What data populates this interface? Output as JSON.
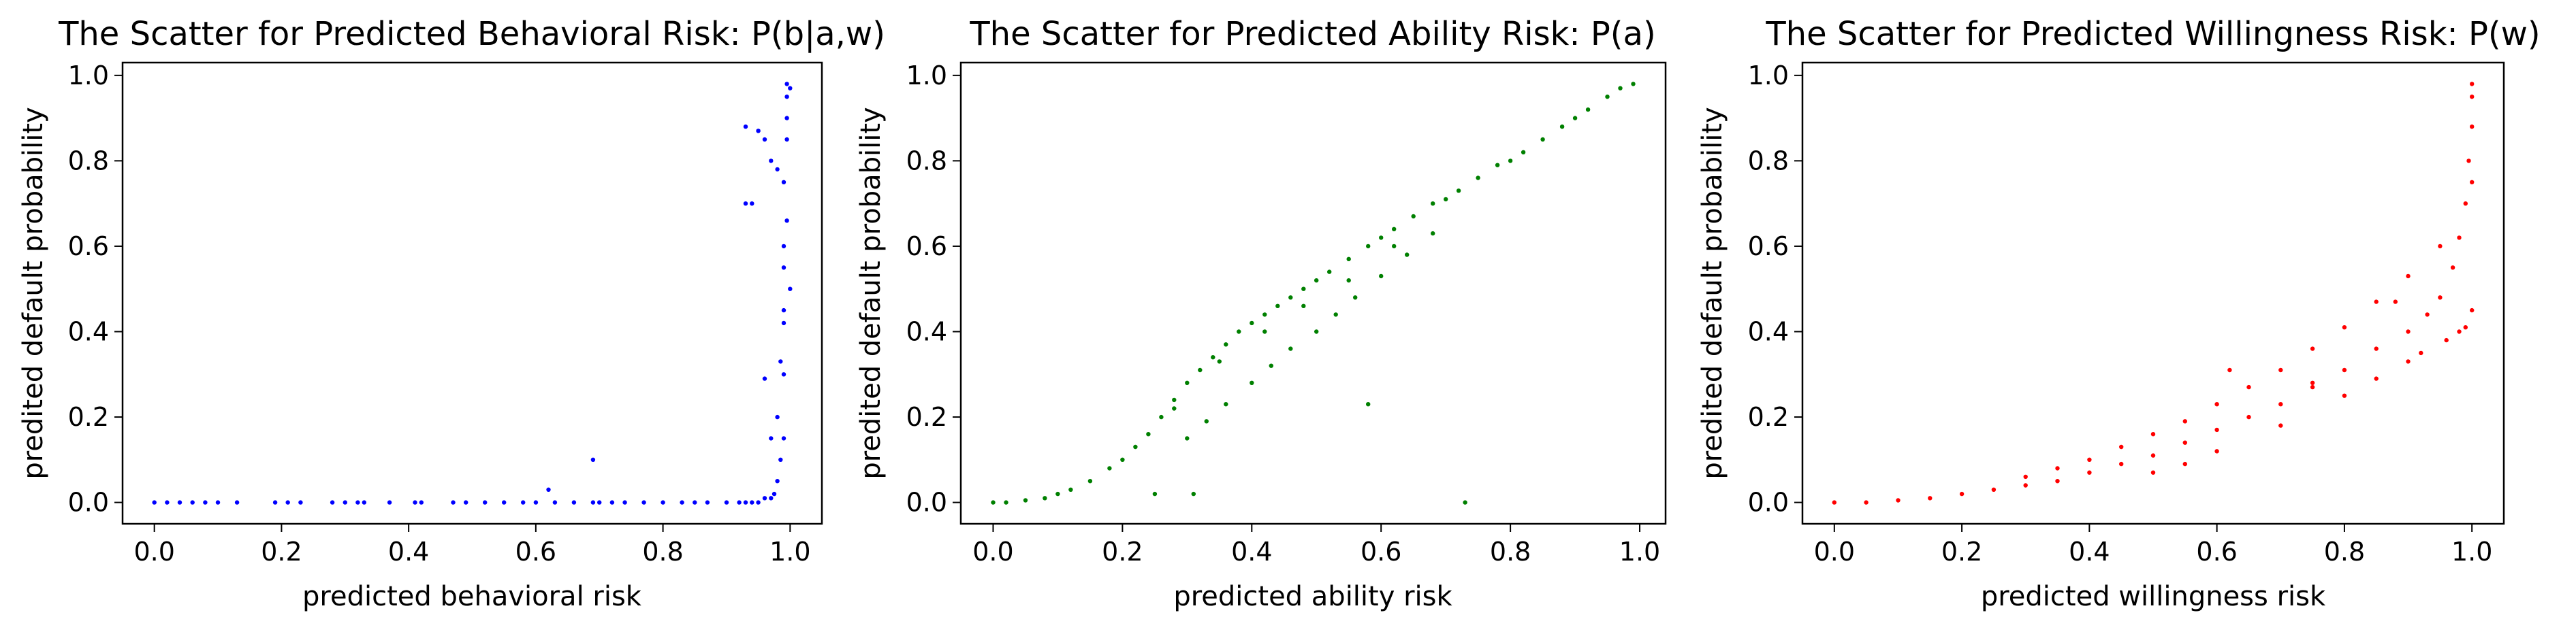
{
  "chart_data": [
    {
      "type": "scatter",
      "title": "The Scatter for Predicted Behavioral Risk: P(b|a,w)",
      "xlabel": "predicted behavioral risk",
      "ylabel": "predited default probability",
      "xlim": [
        -0.05,
        1.05
      ],
      "ylim": [
        -0.05,
        1.03
      ],
      "xticks": [
        0.0,
        0.2,
        0.4,
        0.6,
        0.8,
        1.0
      ],
      "xtick_labels": [
        "0.0",
        "0.2",
        "0.4",
        "0.6",
        "0.8",
        "1.0"
      ],
      "yticks": [
        0.0,
        0.2,
        0.4,
        0.6,
        0.8,
        1.0
      ],
      "ytick_labels": [
        "0.0",
        "0.2",
        "0.4",
        "0.6",
        "0.8",
        "1.0"
      ],
      "color": "#0000ff",
      "grid": false,
      "series": [
        {
          "x": [
            0.0,
            0.02,
            0.04,
            0.06,
            0.08,
            0.1,
            0.13,
            0.19,
            0.21,
            0.23,
            0.28,
            0.3,
            0.32,
            0.33,
            0.37,
            0.41,
            0.42,
            0.47,
            0.49,
            0.52,
            0.55,
            0.58,
            0.6,
            0.63,
            0.66,
            0.69,
            0.7,
            0.72,
            0.74,
            0.77,
            0.8,
            0.83,
            0.85,
            0.87,
            0.9,
            0.92,
            0.93,
            0.94,
            0.95,
            0.96,
            0.97,
            0.975,
            0.98,
            0.985,
            0.99,
            0.99,
            0.99,
            0.99,
            0.99,
            0.995,
            0.995,
            0.995,
            0.995,
            1.0,
            1.0,
            0.93,
            0.94,
            0.95,
            0.96,
            0.97,
            0.98,
            0.985,
            0.99,
            0.99,
            0.995,
            0.98,
            0.97,
            0.96,
            0.62,
            0.69,
            0.93,
            0.95
          ],
          "y": [
            0.0,
            0.0,
            0.0,
            0.0,
            0.0,
            0.0,
            0.0,
            0.0,
            0.0,
            0.0,
            0.0,
            0.0,
            0.0,
            0.0,
            0.0,
            0.0,
            0.0,
            0.0,
            0.0,
            0.0,
            0.0,
            0.0,
            0.0,
            0.0,
            0.0,
            0.0,
            0.0,
            0.0,
            0.0,
            0.0,
            0.0,
            0.0,
            0.0,
            0.0,
            0.0,
            0.0,
            0.0,
            0.0,
            0.0,
            0.01,
            0.01,
            0.02,
            0.05,
            0.1,
            0.15,
            0.3,
            0.45,
            0.6,
            0.75,
            0.85,
            0.9,
            0.95,
            0.98,
            0.5,
            0.97,
            0.88,
            0.7,
            0.87,
            0.29,
            0.15,
            0.2,
            0.33,
            0.42,
            0.55,
            0.66,
            0.78,
            0.8,
            0.85,
            0.03,
            0.1,
            0.7,
            0.87
          ]
        }
      ]
    },
    {
      "type": "scatter",
      "title": "The Scatter for Predicted Ability Risk: P(a)",
      "xlabel": "predicted ability risk",
      "ylabel": "predited default probability",
      "xlim": [
        -0.05,
        1.04
      ],
      "ylim": [
        -0.05,
        1.03
      ],
      "xticks": [
        0.0,
        0.2,
        0.4,
        0.6,
        0.8,
        1.0
      ],
      "xtick_labels": [
        "0.0",
        "0.2",
        "0.4",
        "0.6",
        "0.8",
        "1.0"
      ],
      "yticks": [
        0.0,
        0.2,
        0.4,
        0.6,
        0.8,
        1.0
      ],
      "ytick_labels": [
        "0.0",
        "0.2",
        "0.4",
        "0.6",
        "0.8",
        "1.0"
      ],
      "color": "#008000",
      "grid": false,
      "series": [
        {
          "x": [
            0.0,
            0.02,
            0.05,
            0.08,
            0.1,
            0.12,
            0.15,
            0.18,
            0.2,
            0.22,
            0.24,
            0.26,
            0.28,
            0.3,
            0.32,
            0.34,
            0.36,
            0.38,
            0.4,
            0.42,
            0.44,
            0.46,
            0.48,
            0.5,
            0.52,
            0.55,
            0.58,
            0.6,
            0.62,
            0.65,
            0.68,
            0.7,
            0.72,
            0.75,
            0.78,
            0.8,
            0.82,
            0.85,
            0.88,
            0.9,
            0.92,
            0.95,
            0.97,
            0.99,
            0.3,
            0.33,
            0.36,
            0.4,
            0.43,
            0.46,
            0.5,
            0.53,
            0.56,
            0.6,
            0.64,
            0.68,
            0.28,
            0.35,
            0.42,
            0.48,
            0.55,
            0.62,
            0.58,
            0.73,
            0.25,
            0.31
          ],
          "y": [
            0.0,
            0.0,
            0.005,
            0.01,
            0.02,
            0.03,
            0.05,
            0.08,
            0.1,
            0.13,
            0.16,
            0.2,
            0.24,
            0.28,
            0.31,
            0.34,
            0.37,
            0.4,
            0.42,
            0.44,
            0.46,
            0.48,
            0.5,
            0.52,
            0.54,
            0.57,
            0.6,
            0.62,
            0.64,
            0.67,
            0.7,
            0.71,
            0.73,
            0.76,
            0.79,
            0.8,
            0.82,
            0.85,
            0.88,
            0.9,
            0.92,
            0.95,
            0.97,
            0.98,
            0.15,
            0.19,
            0.23,
            0.28,
            0.32,
            0.36,
            0.4,
            0.44,
            0.48,
            0.53,
            0.58,
            0.63,
            0.22,
            0.33,
            0.4,
            0.46,
            0.52,
            0.6,
            0.23,
            0.0,
            0.02,
            0.02
          ]
        }
      ]
    },
    {
      "type": "scatter",
      "title": "The Scatter for Predicted Willingness Risk: P(w)",
      "xlabel": "predicted willingness risk",
      "ylabel": "predited default probability",
      "xlim": [
        -0.05,
        1.05
      ],
      "ylim": [
        -0.05,
        1.03
      ],
      "xticks": [
        0.0,
        0.2,
        0.4,
        0.6,
        0.8,
        1.0
      ],
      "xtick_labels": [
        "0.0",
        "0.2",
        "0.4",
        "0.6",
        "0.8",
        "1.0"
      ],
      "yticks": [
        0.0,
        0.2,
        0.4,
        0.6,
        0.8,
        1.0
      ],
      "ytick_labels": [
        "0.0",
        "0.2",
        "0.4",
        "0.6",
        "0.8",
        "1.0"
      ],
      "color": "#ff0000",
      "grid": false,
      "series": [
        {
          "x": [
            0.0,
            0.05,
            0.1,
            0.15,
            0.2,
            0.25,
            0.3,
            0.35,
            0.4,
            0.45,
            0.5,
            0.55,
            0.6,
            0.65,
            0.7,
            0.75,
            0.8,
            0.85,
            0.9,
            0.93,
            0.95,
            0.97,
            0.98,
            0.99,
            0.995,
            1.0,
            1.0,
            1.0,
            1.0,
            0.3,
            0.35,
            0.4,
            0.45,
            0.5,
            0.55,
            0.6,
            0.65,
            0.7,
            0.75,
            0.8,
            0.85,
            0.9,
            0.95,
            0.5,
            0.55,
            0.6,
            0.7,
            0.8,
            0.85,
            0.9,
            0.92,
            0.96,
            0.98,
            0.99,
            1.0,
            0.62,
            0.75,
            0.88
          ],
          "y": [
            0.0,
            0.0,
            0.005,
            0.01,
            0.02,
            0.03,
            0.04,
            0.05,
            0.07,
            0.09,
            0.11,
            0.14,
            0.17,
            0.2,
            0.23,
            0.27,
            0.31,
            0.36,
            0.4,
            0.44,
            0.48,
            0.55,
            0.62,
            0.7,
            0.8,
            0.88,
            0.95,
            0.98,
            0.75,
            0.06,
            0.08,
            0.1,
            0.13,
            0.16,
            0.19,
            0.23,
            0.27,
            0.31,
            0.36,
            0.41,
            0.47,
            0.53,
            0.6,
            0.07,
            0.09,
            0.12,
            0.18,
            0.25,
            0.29,
            0.33,
            0.35,
            0.38,
            0.4,
            0.41,
            0.45,
            0.31,
            0.28,
            0.47
          ]
        }
      ]
    }
  ]
}
